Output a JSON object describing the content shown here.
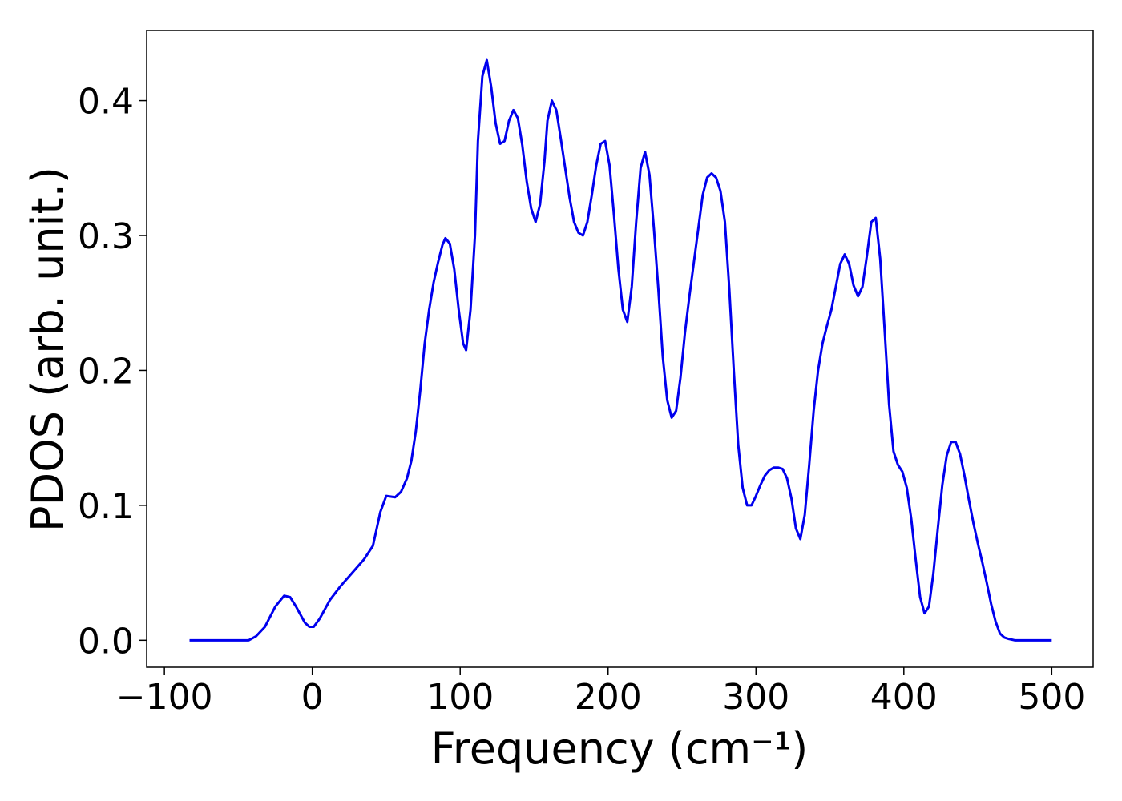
{
  "chart_data": {
    "type": "line",
    "xlabel": "Frequency (cm⁻¹)",
    "ylabel": "PDOS (arb. unit.)",
    "xlim": [
      -112,
      528
    ],
    "ylim": [
      -0.02,
      0.452
    ],
    "xticks": [
      {
        "value": -100,
        "label": "−100"
      },
      0,
      100,
      200,
      300,
      400,
      500
    ],
    "yticks": [
      {
        "value": 0,
        "label": "0.0"
      },
      0.1,
      0.2,
      0.3,
      0.4
    ],
    "series": [
      {
        "color": "#0000ee",
        "x": [
          -83,
          -60,
          -43,
          -38,
          -32,
          -25,
          -19,
          -15,
          -11,
          -5,
          -2,
          1,
          5,
          12,
          19,
          27,
          35,
          41,
          46,
          50,
          56,
          60,
          64,
          67,
          70,
          73,
          76,
          79,
          82,
          85,
          88,
          90,
          93,
          96,
          99,
          102,
          104,
          107,
          110,
          112,
          115,
          118,
          121,
          124,
          127,
          130,
          133,
          136,
          139,
          142,
          145,
          148,
          151,
          154,
          157,
          159,
          162,
          165,
          168,
          171,
          174,
          177,
          180,
          183,
          186,
          189,
          192,
          195,
          198,
          201,
          204,
          207,
          210,
          213,
          216,
          219,
          222,
          225,
          228,
          231,
          234,
          237,
          240,
          243,
          246,
          249,
          252,
          255,
          258,
          261,
          264,
          267,
          270,
          273,
          276,
          279,
          282,
          285,
          288,
          291,
          294,
          297,
          300,
          303,
          306,
          309,
          312,
          315,
          318,
          321,
          324,
          327,
          330,
          333,
          336,
          339,
          342,
          345,
          348,
          351,
          354,
          357,
          360,
          363,
          366,
          369,
          372,
          375,
          378,
          381,
          384,
          387,
          390,
          393,
          396,
          399,
          402,
          405,
          408,
          411,
          414,
          417,
          420,
          423,
          426,
          429,
          432,
          435,
          438,
          441,
          444,
          447,
          450,
          453,
          456,
          459,
          462,
          465,
          468,
          471,
          475,
          500
        ],
        "values": [
          0,
          0,
          0,
          0.003,
          0.01,
          0.025,
          0.033,
          0.032,
          0.025,
          0.013,
          0.01,
          0.01,
          0.016,
          0.03,
          0.04,
          0.05,
          0.06,
          0.07,
          0.095,
          0.107,
          0.106,
          0.11,
          0.12,
          0.133,
          0.155,
          0.185,
          0.22,
          0.245,
          0.265,
          0.28,
          0.293,
          0.298,
          0.294,
          0.275,
          0.245,
          0.22,
          0.215,
          0.245,
          0.3,
          0.37,
          0.418,
          0.43,
          0.41,
          0.383,
          0.368,
          0.37,
          0.385,
          0.393,
          0.387,
          0.367,
          0.34,
          0.32,
          0.31,
          0.323,
          0.355,
          0.385,
          0.4,
          0.393,
          0.372,
          0.35,
          0.328,
          0.31,
          0.302,
          0.3,
          0.31,
          0.33,
          0.352,
          0.368,
          0.37,
          0.352,
          0.315,
          0.275,
          0.245,
          0.236,
          0.262,
          0.31,
          0.35,
          0.362,
          0.345,
          0.305,
          0.26,
          0.21,
          0.178,
          0.165,
          0.17,
          0.195,
          0.228,
          0.255,
          0.28,
          0.305,
          0.33,
          0.343,
          0.346,
          0.343,
          0.333,
          0.31,
          0.26,
          0.2,
          0.145,
          0.113,
          0.1,
          0.1,
          0.107,
          0.115,
          0.122,
          0.126,
          0.128,
          0.128,
          0.127,
          0.12,
          0.105,
          0.083,
          0.075,
          0.093,
          0.13,
          0.17,
          0.2,
          0.22,
          0.233,
          0.245,
          0.262,
          0.279,
          0.286,
          0.279,
          0.263,
          0.255,
          0.262,
          0.285,
          0.31,
          0.313,
          0.283,
          0.23,
          0.175,
          0.14,
          0.13,
          0.125,
          0.113,
          0.09,
          0.06,
          0.032,
          0.02,
          0.025,
          0.05,
          0.083,
          0.115,
          0.137,
          0.147,
          0.147,
          0.138,
          0.122,
          0.104,
          0.087,
          0.072,
          0.058,
          0.043,
          0.027,
          0.014,
          0.005,
          0.002,
          0.001,
          0,
          0
        ]
      }
    ]
  }
}
